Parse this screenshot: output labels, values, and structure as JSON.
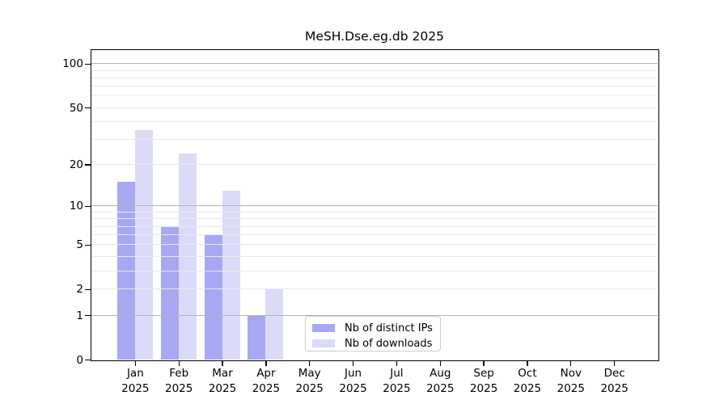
{
  "title": "MeSH.Dse.eg.db 2025",
  "chart_data": {
    "type": "bar",
    "title": "MeSH.Dse.eg.db 2025",
    "categories": [
      "Jan",
      "Feb",
      "Mar",
      "Apr",
      "May",
      "Jun",
      "Jul",
      "Aug",
      "Sep",
      "Oct",
      "Nov",
      "Dec"
    ],
    "category_year": "2025",
    "series": [
      {
        "name": "Nb of distinct IPs",
        "color": "#a7a7f4",
        "values": [
          15,
          7,
          6,
          1,
          0,
          0,
          0,
          0,
          0,
          0,
          0,
          0
        ]
      },
      {
        "name": "Nb of downloads",
        "color": "#dbdbf9",
        "values": [
          35,
          24,
          13,
          2,
          0,
          0,
          0,
          0,
          0,
          0,
          0,
          0
        ]
      }
    ],
    "yscale": "log10(1+x)",
    "ylim": [
      0,
      112
    ],
    "ytick_values": [
      0,
      1,
      2,
      5,
      10,
      20,
      50,
      100
    ],
    "ytick_labels": [
      "0",
      "1",
      "2",
      "5",
      "10",
      "20",
      "50",
      "100"
    ],
    "grid_major_values": [
      1,
      10,
      100
    ],
    "grid_minor_values": [
      2,
      3,
      4,
      5,
      6,
      7,
      8,
      9,
      20,
      30,
      40,
      50,
      60,
      70,
      80,
      90
    ],
    "legend_position": "inside-bottom-center-right",
    "xlabel": "",
    "ylabel": ""
  },
  "colors": {
    "distinct_ips_bar": "#a7a7f4",
    "downloads_bar": "#dbdbf9",
    "grid_major": "#b3b3b3",
    "grid_minor": "#e9e9ee",
    "axis": "#000000",
    "legend_border": "#cccccc",
    "background": "#ffffff"
  }
}
